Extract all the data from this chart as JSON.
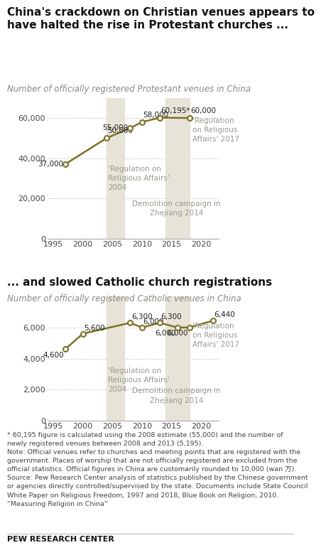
{
  "title1": "China's crackdown on Christian venues appears to\nhave halted the rise in Protestant churches ...",
  "subtitle1": "Number of officially registered Protestant venues in China",
  "title2": "... and slowed Catholic church registrations",
  "subtitle2": "Number of officially registered Catholic venues in China",
  "protestant_years": [
    1997,
    2004,
    2008,
    2010,
    2013,
    2018
  ],
  "protestant_values": [
    37000,
    50000,
    55000,
    58000,
    60195,
    60000
  ],
  "protestant_labels": [
    "37,000",
    "50,000",
    "55,000",
    "58,000",
    "60,195*",
    "60,000"
  ],
  "protestant_label_ha": [
    "right",
    "left",
    "right",
    "left",
    "left",
    "left"
  ],
  "protestant_label_va": [
    "center",
    "bottom",
    "center",
    "bottom",
    "bottom",
    "bottom"
  ],
  "protestant_label_dx": [
    -0.3,
    0.2,
    -0.3,
    0.2,
    0.2,
    0.2
  ],
  "protestant_label_dy": [
    0,
    1800,
    0,
    1800,
    1800,
    1800
  ],
  "catholic_years": [
    1997,
    2000,
    2008,
    2010,
    2013,
    2016,
    2018,
    2022
  ],
  "catholic_values": [
    4600,
    5600,
    6300,
    6000,
    6300,
    6000,
    6000,
    6440
  ],
  "catholic_labels": [
    "4,600",
    "5,600",
    "6,300",
    "6,000",
    "6,300",
    "6,000",
    "6,000",
    "6,440"
  ],
  "catholic_label_ha": [
    "right",
    "left",
    "left",
    "left",
    "left",
    "right",
    "right",
    "left"
  ],
  "catholic_label_va": [
    "top",
    "bottom",
    "bottom",
    "bottom",
    "bottom",
    "top",
    "top",
    "bottom"
  ],
  "catholic_label_dx": [
    -0.2,
    0.2,
    0.2,
    0.2,
    0.2,
    -0.2,
    -0.2,
    0.2
  ],
  "catholic_label_dy": [
    -150,
    150,
    150,
    150,
    150,
    -150,
    -150,
    150
  ],
  "line_color": "#7d7228",
  "marker_facecolor": "#ffffff",
  "shade_color": "#e8e3d8",
  "shade1": [
    2004,
    2007
  ],
  "shade2": [
    2014,
    2018
  ],
  "xlim": [
    1994,
    2023
  ],
  "xticks": [
    1995,
    2000,
    2005,
    2010,
    2015,
    2020
  ],
  "protestant_ylim": [
    0,
    70000
  ],
  "protestant_yticks": [
    0,
    20000,
    40000,
    60000
  ],
  "protestant_ytick_labels": [
    "0",
    "20,000",
    "40,000",
    "60,000"
  ],
  "catholic_ylim": [
    0,
    8000
  ],
  "catholic_yticks": [
    0,
    2000,
    4000,
    6000
  ],
  "catholic_ytick_labels": [
    "0",
    "2,000",
    "4,000",
    "6,000"
  ],
  "footnote": "* 60,195 figure is calculated using the 2008 estimate (55,000) and the number of\nnewly registered venues between 2008 and 2013 (5,195).\nNote: Official venues refer to churches and meeting points that are registered with the\ngovernment. Places of worship that are not officially registered are excluded from the\nofficial statistics. Official figures in China are customarily rounded to 10,000 (wan 万).\nSource: Pew Research Center analysis of statistics published by the Chinese government\nor agencies directly controlled/supervised by the state. Documents include State Council\nWhite Paper on Religious Freedom, 1997 and 2018; Blue Book on Religion, 2010.\n“Measuring Religion in China”",
  "pew_label": "PEW RESEARCH CENTER",
  "bg_color": "#ffffff",
  "text_color": "#222222",
  "axis_text_color": "#444444",
  "grid_color": "#cccccc",
  "annotation_color": "#999990",
  "title_fontsize": 11.0,
  "subtitle_fontsize": 8.5,
  "tick_fontsize": 8.0,
  "label_fontsize": 7.5,
  "annotation_fontsize": 7.5,
  "footnote_fontsize": 6.8,
  "pew_fontsize": 8.0
}
